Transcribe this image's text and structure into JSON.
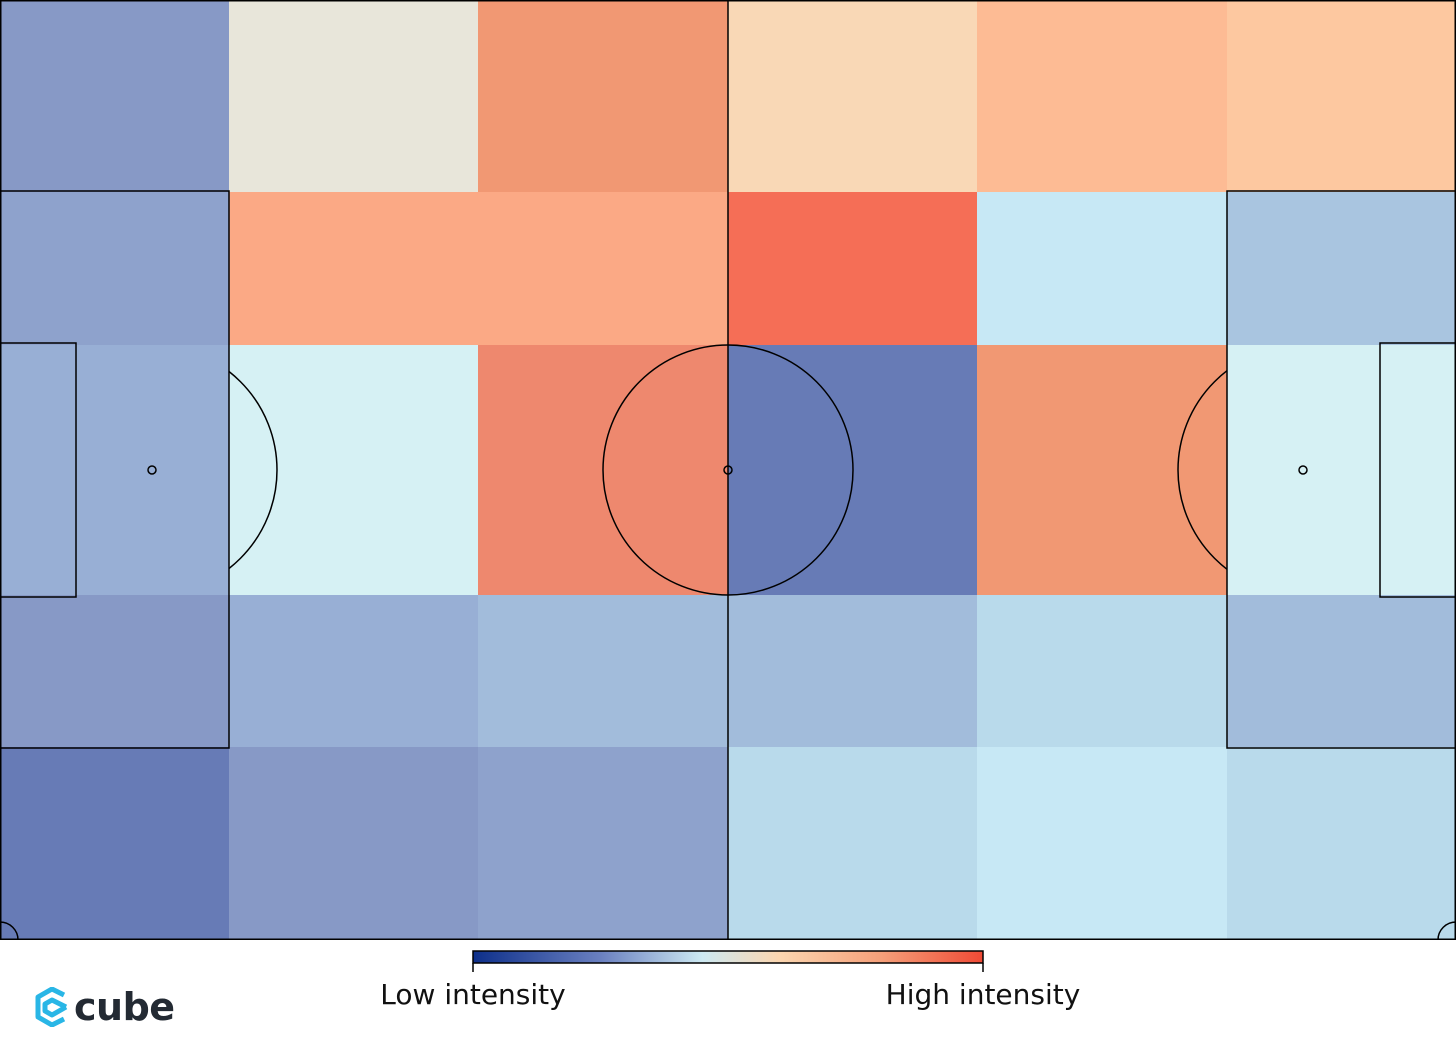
{
  "chart_data": {
    "type": "heatmap",
    "title": "",
    "grid": {
      "rows": 5,
      "cols": 6
    },
    "value_range": [
      0,
      1
    ],
    "values": [
      [
        0.22,
        0.52,
        0.78,
        0.6,
        0.68,
        0.64
      ],
      [
        0.24,
        0.72,
        0.72,
        0.9,
        0.4,
        0.32
      ],
      [
        0.27,
        0.45,
        0.82,
        0.11,
        0.78,
        0.45
      ],
      [
        0.22,
        0.27,
        0.3,
        0.3,
        0.37,
        0.3
      ],
      [
        0.11,
        0.22,
        0.24,
        0.37,
        0.4,
        0.37
      ]
    ],
    "colorbar": {
      "low_label": "Low intensity",
      "high_label": "High intensity"
    },
    "colors": {
      "low": "#1e3a8a",
      "mid": "#d6f1f4",
      "peach": "#fbd6b0",
      "high": "#ef4a35",
      "lines": "#000000"
    }
  },
  "branding": {
    "logo_text": "cube",
    "logo_color": "#29b6e6"
  }
}
